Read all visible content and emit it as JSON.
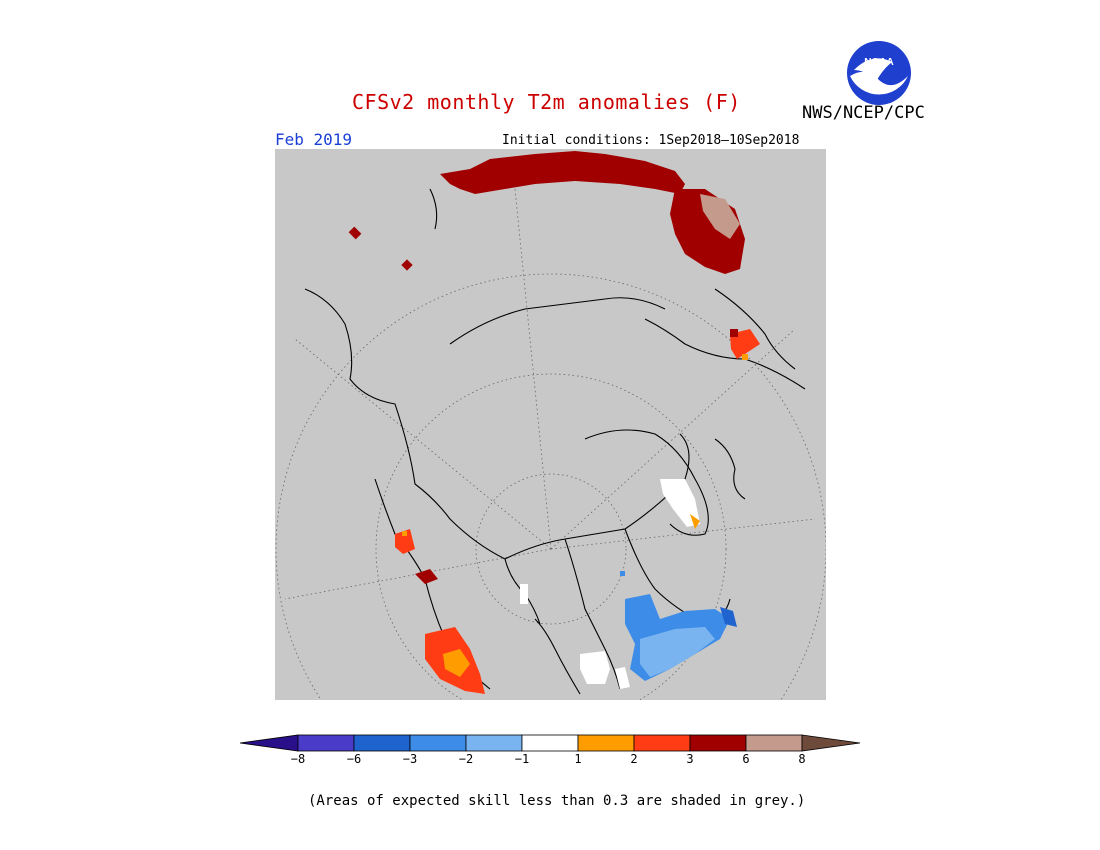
{
  "header": {
    "title": "CFSv2 monthly T2m anomalies (F)",
    "agency": "NWS/NCEP/CPC",
    "logo_text": "NOAA",
    "month": "Feb 2019",
    "initial_conditions": "Initial conditions: 1Sep2018—10Sep2018"
  },
  "colorbar": {
    "tick_labels": [
      "−8",
      "−6",
      "−3",
      "−2",
      "−1",
      "1",
      "2",
      "3",
      "6",
      "8"
    ],
    "colors": [
      "#2a0f8a",
      "#4a3cc9",
      "#1f63cf",
      "#3d8de8",
      "#7ab4f0",
      "#ffffff",
      "#ff9d00",
      "#ff3c14",
      "#a10000",
      "#c49a8c",
      "#6e4a3a"
    ]
  },
  "footer": {
    "note": "(Areas of expected skill less than 0.3 are shaded in grey.)"
  },
  "map": {
    "projection": "north polar stereographic",
    "skill_mask_color": "#c8c8c8"
  }
}
